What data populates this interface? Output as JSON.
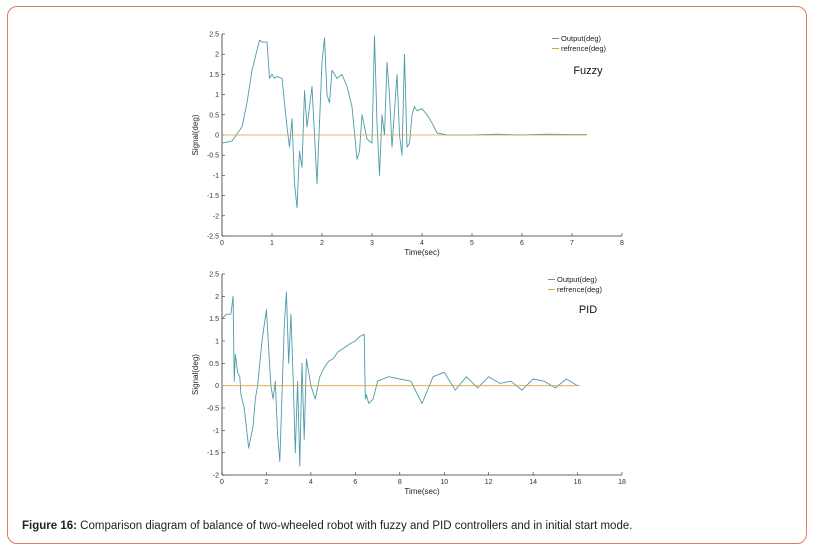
{
  "caption": {
    "label": "Figure 16:",
    "text": " Comparison diagram of balance of two-wheeled robot with fuzzy and PID controllers and in initial start mode."
  },
  "colors": {
    "output": "#4f9bab",
    "reference": "#d9a441",
    "frame": "#e07a5f"
  },
  "chart_data": [
    {
      "type": "line",
      "title": "Fuzzy",
      "xlabel": "Time(sec)",
      "ylabel": "Signal(deg)",
      "xlim": [
        0,
        8
      ],
      "ylim": [
        -2.5,
        2.5
      ],
      "xticks": [
        0,
        1,
        2,
        3,
        4,
        5,
        6,
        7,
        8
      ],
      "yticks": [
        2.5,
        2,
        1.5,
        1,
        0.5,
        0,
        -0.5,
        -1,
        -1.5,
        -2,
        -2.5
      ],
      "xtick_labels": [
        "0",
        "1",
        "2",
        "3",
        "4",
        "5",
        "6",
        "7",
        "8"
      ],
      "ytick_labels": [
        "2.5",
        "2",
        "1.5",
        "1",
        "0.5",
        "0",
        "-0.5",
        "-1",
        "-1.5",
        "-2",
        "-2.5"
      ],
      "legend": [
        "Output(deg)",
        "refrence(deg)"
      ],
      "legend_position": "top-right",
      "series": [
        {
          "name": "Output(deg)",
          "x": [
            0,
            0.2,
            0.4,
            0.5,
            0.6,
            0.7,
            0.75,
            0.8,
            0.9,
            0.95,
            1.0,
            1.05,
            1.1,
            1.2,
            1.3,
            1.35,
            1.4,
            1.45,
            1.5,
            1.55,
            1.6,
            1.65,
            1.7,
            1.8,
            1.9,
            2.0,
            2.05,
            2.1,
            2.15,
            2.2,
            2.3,
            2.4,
            2.5,
            2.6,
            2.7,
            2.75,
            2.8,
            2.9,
            3.0,
            3.05,
            3.1,
            3.15,
            3.2,
            3.25,
            3.3,
            3.35,
            3.4,
            3.5,
            3.55,
            3.6,
            3.65,
            3.7,
            3.75,
            3.8,
            3.85,
            3.9,
            4.0,
            4.1,
            4.2,
            4.3,
            4.5,
            5.0,
            5.5,
            6.0,
            6.5,
            7.0,
            7.3
          ],
          "y": [
            -0.2,
            -0.15,
            0.2,
            0.8,
            1.6,
            2.1,
            2.35,
            2.3,
            2.3,
            1.4,
            1.5,
            1.4,
            1.45,
            1.4,
            0.2,
            -0.3,
            0.4,
            -1.2,
            -1.8,
            -0.4,
            -0.8,
            1.1,
            0.2,
            1.2,
            -1.2,
            1.8,
            2.4,
            1.0,
            0.8,
            1.6,
            1.4,
            1.5,
            1.2,
            0.7,
            -0.6,
            -0.4,
            0.5,
            -0.1,
            -0.2,
            2.45,
            0.3,
            -1.0,
            0.5,
            0.0,
            1.8,
            1.0,
            -0.3,
            1.5,
            0.0,
            -0.5,
            2.0,
            -0.3,
            -0.2,
            0.5,
            0.7,
            0.6,
            0.65,
            0.5,
            0.3,
            0.05,
            0.0,
            0.0,
            0.02,
            0.0,
            0.02,
            0.01,
            0.01
          ]
        },
        {
          "name": "refrence(deg)",
          "x": [
            0,
            7.3
          ],
          "y": [
            0,
            0
          ]
        }
      ]
    },
    {
      "type": "line",
      "title": "PID",
      "xlabel": "Time(sec)",
      "ylabel": "Signal(deg)",
      "xlim": [
        0,
        18
      ],
      "ylim": [
        -2,
        2.5
      ],
      "xticks": [
        0,
        2,
        4,
        6,
        8,
        10,
        12,
        14,
        16,
        18
      ],
      "yticks": [
        2.5,
        2,
        1.5,
        1,
        0.5,
        0,
        -0.5,
        -1,
        -1.5,
        -2
      ],
      "xtick_labels": [
        "0",
        "2",
        "4",
        "6",
        "8",
        "10",
        "12",
        "14",
        "16",
        "18"
      ],
      "ytick_labels": [
        "2.5",
        "2",
        "1.5",
        "1",
        "0.5",
        "0",
        "-0.5",
        "-1",
        "-1.5",
        "-2"
      ],
      "legend": [
        "Output(deg)",
        "refrence(deg)"
      ],
      "legend_position": "top-right",
      "series": [
        {
          "name": "Output(deg)",
          "x": [
            0,
            0.2,
            0.4,
            0.5,
            0.55,
            0.6,
            0.7,
            0.8,
            0.85,
            0.9,
            1.0,
            1.2,
            1.4,
            1.5,
            1.6,
            1.8,
            2.0,
            2.2,
            2.3,
            2.4,
            2.5,
            2.6,
            2.8,
            2.9,
            3.0,
            3.1,
            3.2,
            3.3,
            3.4,
            3.5,
            3.6,
            3.7,
            3.8,
            4.0,
            4.2,
            4.4,
            4.6,
            4.8,
            5.0,
            5.2,
            5.5,
            5.8,
            6.0,
            6.2,
            6.4,
            6.45,
            6.5,
            6.6,
            6.8,
            7.0,
            7.5,
            8.0,
            8.5,
            9.0,
            9.5,
            10.0,
            10.5,
            11.0,
            11.5,
            12.0,
            12.5,
            13.0,
            13.5,
            14.0,
            14.5,
            15.0,
            15.5,
            16.0
          ],
          "y": [
            1.5,
            1.6,
            1.6,
            2.0,
            0.1,
            0.7,
            0.3,
            0.2,
            -0.2,
            -0.3,
            -0.5,
            -1.4,
            -0.9,
            -0.3,
            0.0,
            1.0,
            1.7,
            0.0,
            -0.3,
            0.1,
            -1.1,
            -1.7,
            1.3,
            2.1,
            0.5,
            1.6,
            0.2,
            -1.5,
            0.1,
            -1.8,
            0.5,
            -1.2,
            0.6,
            0.0,
            -0.3,
            0.2,
            0.4,
            0.55,
            0.6,
            0.75,
            0.85,
            0.95,
            1.0,
            1.1,
            1.15,
            -0.3,
            -0.2,
            -0.4,
            -0.3,
            0.1,
            0.2,
            0.15,
            0.1,
            -0.4,
            0.2,
            0.3,
            -0.1,
            0.2,
            -0.05,
            0.2,
            0.05,
            0.1,
            -0.1,
            0.15,
            0.1,
            -0.05,
            0.15,
            0.0
          ]
        },
        {
          "name": "refrence(deg)",
          "x": [
            0,
            16.1
          ],
          "y": [
            0,
            0
          ]
        }
      ]
    }
  ]
}
